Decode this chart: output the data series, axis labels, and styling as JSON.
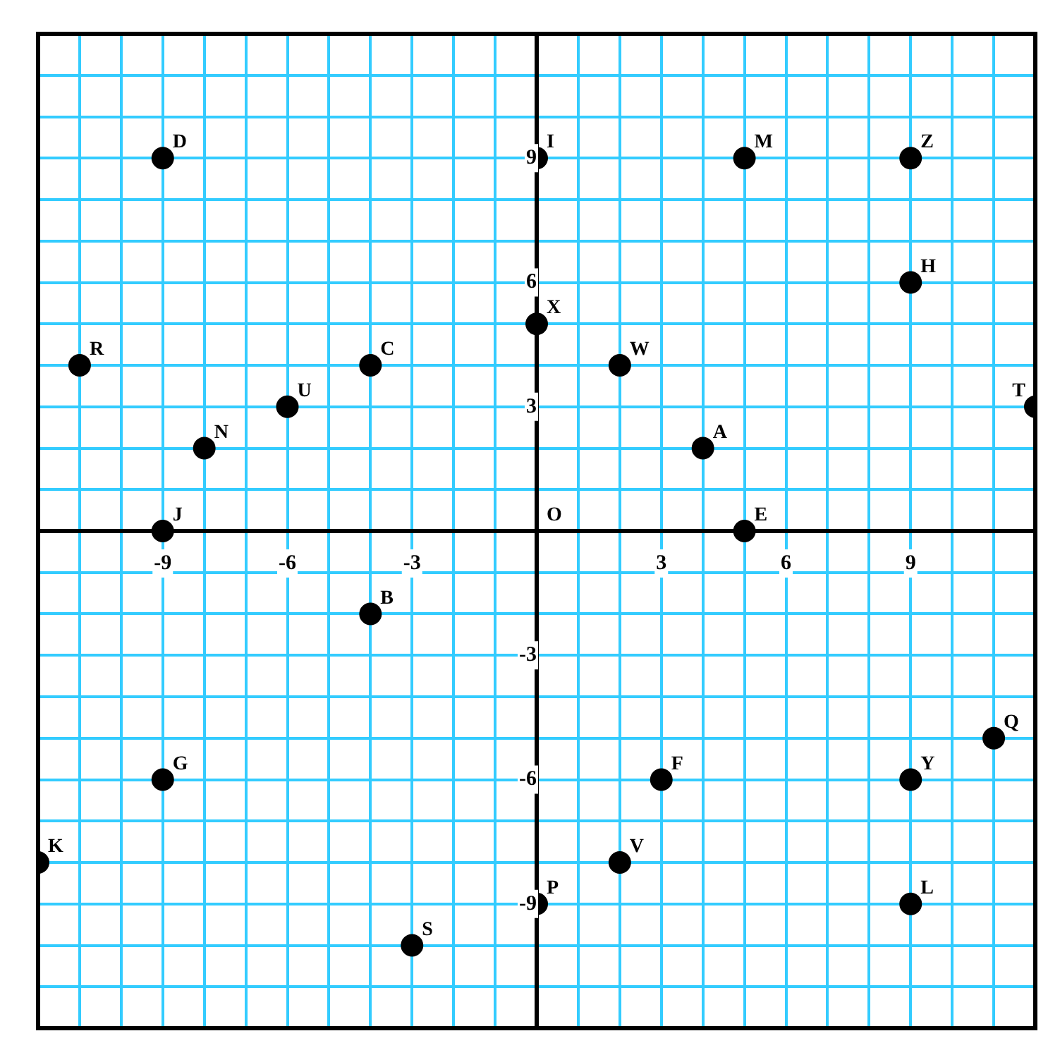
{
  "chart_data": {
    "type": "scatter",
    "x": [
      -9,
      0,
      5,
      9,
      9,
      0,
      -11,
      -4,
      2,
      -6,
      12,
      -8,
      4,
      -9,
      5,
      -4,
      11,
      -9,
      3,
      9,
      -12,
      2,
      0,
      9,
      -3
    ],
    "values": [
      9,
      9,
      9,
      9,
      6,
      5,
      4,
      4,
      4,
      3,
      3,
      2,
      2,
      0,
      0,
      -2,
      -5,
      -6,
      -6,
      -6,
      -8,
      -8,
      -9,
      -9,
      -10
    ],
    "value_labels": [
      "D",
      "I",
      "M",
      "Z",
      "H",
      "X",
      "R",
      "C",
      "W",
      "U",
      "T",
      "N",
      "A",
      "J",
      "E",
      "B",
      "Q",
      "G",
      "F",
      "Y",
      "K",
      "V",
      "P",
      "L",
      "S"
    ],
    "color": "#000000",
    "marker": "circle",
    "annotations": [
      "O"
    ],
    "xlim": [
      -12,
      12
    ],
    "ylim": [
      -12,
      12
    ],
    "xticks": [
      {
        "value": -12,
        "label": null
      },
      {
        "value": -11,
        "label": null
      },
      {
        "value": -10,
        "label": null
      },
      -9,
      {
        "value": -8,
        "label": null
      },
      {
        "value": -7,
        "label": null
      },
      -6,
      {
        "value": -5,
        "label": null
      },
      {
        "value": -4,
        "label": null
      },
      -3,
      {
        "value": -2,
        "label": null
      },
      {
        "value": -1,
        "label": null
      },
      {
        "value": 0,
        "label": null
      },
      {
        "value": 1,
        "label": null
      },
      {
        "value": 2,
        "label": null
      },
      3,
      {
        "value": 4,
        "label": null
      },
      {
        "value": 5,
        "label": null
      },
      6,
      {
        "value": 7,
        "label": null
      },
      {
        "value": 8,
        "label": null
      },
      9,
      {
        "value": 10,
        "label": null
      },
      {
        "value": 11,
        "label": null
      },
      {
        "value": 12,
        "label": null
      }
    ],
    "yticks": [
      {
        "value": -12,
        "label": null
      },
      {
        "value": -11,
        "label": null
      },
      {
        "value": -10,
        "label": null
      },
      -9,
      {
        "value": -8,
        "label": null
      },
      {
        "value": -7,
        "label": null
      },
      -6,
      {
        "value": -5,
        "label": null
      },
      {
        "value": -4,
        "label": null
      },
      -3,
      {
        "value": -2,
        "label": null
      },
      {
        "value": -1,
        "label": null
      },
      {
        "value": 0,
        "label": null
      },
      {
        "value": 1,
        "label": null
      },
      {
        "value": 2,
        "label": null
      },
      3,
      {
        "value": 4,
        "label": null
      },
      {
        "value": 5,
        "label": null
      },
      6,
      {
        "value": 7,
        "label": null
      },
      {
        "value": 8,
        "label": null
      },
      9,
      {
        "value": 10,
        "label": null
      },
      {
        "value": 11,
        "label": null
      },
      {
        "value": 12,
        "label": null
      }
    ],
    "grid": true,
    "legend": false
  }
}
